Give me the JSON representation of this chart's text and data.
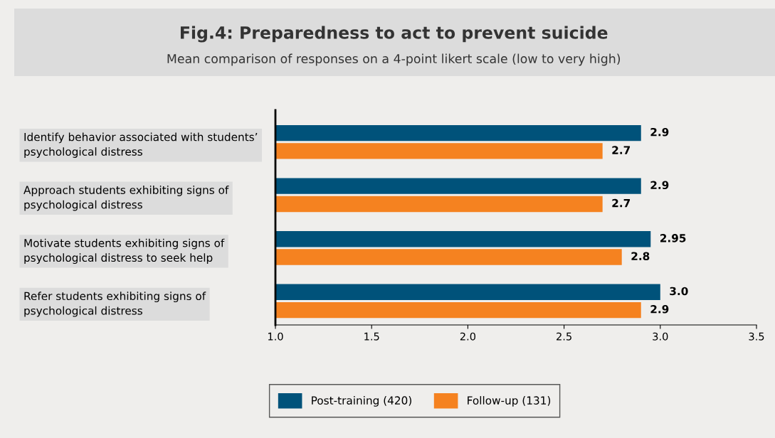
{
  "chart_data": {
    "type": "bar",
    "orientation": "horizontal",
    "title": "Fig.4: Preparedness to act to prevent suicide",
    "subtitle": "Mean comparison of responses on a 4-point likert scale (low to very high)",
    "categories": [
      "Identify behavior associated with students’\npsychological distress",
      "Approach students exhibiting signs of\npsychological distress",
      "Motivate students exhibiting signs of\npsychological distress to seek help",
      "Refer students exhibiting signs of\npsychological distress"
    ],
    "series": [
      {
        "name": "Post-training (420)",
        "color": "#00527a",
        "values": [
          2.9,
          2.9,
          2.95,
          3.0
        ],
        "value_labels": [
          "2.9",
          "2.9",
          "2.95",
          "3.0"
        ]
      },
      {
        "name": "Follow-up (131)",
        "color": "#f58220",
        "values": [
          2.7,
          2.7,
          2.8,
          2.9
        ],
        "value_labels": [
          "2.7",
          "2.7",
          "2.8",
          "2.9"
        ]
      }
    ],
    "xlim": [
      1.0,
      3.5
    ],
    "xticks": [
      {
        "value": 1.0,
        "label": "1.0"
      },
      {
        "value": 1.5,
        "label": "1.5"
      },
      {
        "value": 2.0,
        "label": "2.0"
      },
      {
        "value": 2.5,
        "label": "2.5"
      },
      {
        "value": 3.0,
        "label": "3.0"
      },
      {
        "value": 3.5,
        "label": "3.5"
      }
    ],
    "grid": false,
    "legend": "bottom"
  }
}
